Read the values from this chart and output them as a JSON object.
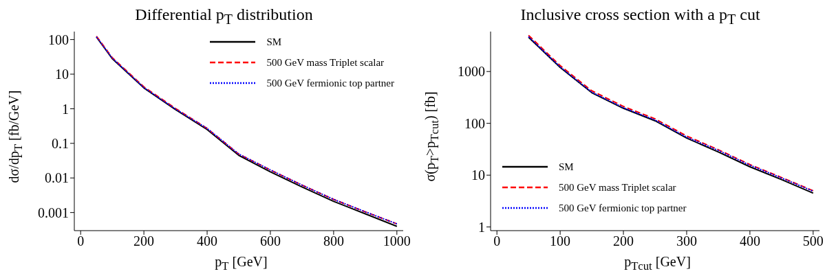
{
  "chart_data": [
    {
      "type": "line",
      "title": "Differential p$_{T}$ distribution",
      "xlabel": "p$_{T}$ [GeV]",
      "ylabel": "dσ/dp$_{T}$ [fb/GeV]",
      "x": [
        50,
        100,
        200,
        300,
        400,
        500,
        600,
        700,
        800,
        900,
        1000
      ],
      "xlim": [
        -20,
        1020
      ],
      "xticks": [
        0,
        200,
        400,
        600,
        800,
        1000
      ],
      "ylim": [
        0.0003,
        170
      ],
      "yticks": [
        0.001,
        0.01,
        0.1,
        1,
        10,
        100
      ],
      "log": "y",
      "grid": false,
      "legend": "top right",
      "marker": "none",
      "series": [
        {
          "name": "SM",
          "color": "#000000",
          "line_style": "solid",
          "values": [
            118,
            28,
            4.0,
            0.95,
            0.25,
            0.045,
            0.015,
            0.0055,
            0.0021,
            0.00092,
            0.0004
          ]
        },
        {
          "name": "500 GeV mass Triplet scalar",
          "color": "#ff0000",
          "line_style": "dashed",
          "values": [
            125,
            30,
            4.3,
            1.02,
            0.27,
            0.049,
            0.017,
            0.0062,
            0.0024,
            0.00105,
            0.00047
          ]
        },
        {
          "name": "500 GeV fermionic top partner",
          "color": "#0000ff",
          "line_style": "dotted",
          "values": [
            120,
            29,
            4.1,
            0.98,
            0.27,
            0.049,
            0.017,
            0.0062,
            0.0024,
            0.00105,
            0.00047
          ]
        }
      ]
    },
    {
      "type": "line",
      "title": "Inclusive cross section with a p$_{T}$ cut",
      "xlabel": "p$_{T}$$_{cut}$ [GeV]",
      "ylabel": "σ(p$_{T}$>p$_{T}$$_{cut}$) [fb]",
      "x": [
        50,
        100,
        150,
        200,
        250,
        300,
        350,
        400,
        450,
        500
      ],
      "xlim": [
        -10,
        510
      ],
      "xticks": [
        0,
        100,
        200,
        300,
        400,
        500
      ],
      "ylim": [
        0.85,
        5900
      ],
      "yticks": [
        1,
        10,
        100,
        1000
      ],
      "log": "y",
      "grid": false,
      "legend": "bottom left",
      "marker": "none",
      "series": [
        {
          "name": "SM",
          "color": "#000000",
          "line_style": "solid",
          "values": [
            4600,
            1200,
            390,
            195,
            112,
            52,
            28,
            14.5,
            8.2,
            4.5
          ]
        },
        {
          "name": "500 GeV mass Triplet scalar",
          "color": "#ff0000",
          "line_style": "dashed",
          "values": [
            5000,
            1300,
            425,
            212,
            122,
            57,
            31,
            16,
            9.0,
            5.0
          ]
        },
        {
          "name": "500 GeV fermionic top partner",
          "color": "#0000ff",
          "line_style": "dotted",
          "values": [
            4700,
            1230,
            400,
            200,
            116,
            54,
            30,
            15.5,
            8.8,
            4.9
          ]
        }
      ]
    }
  ]
}
